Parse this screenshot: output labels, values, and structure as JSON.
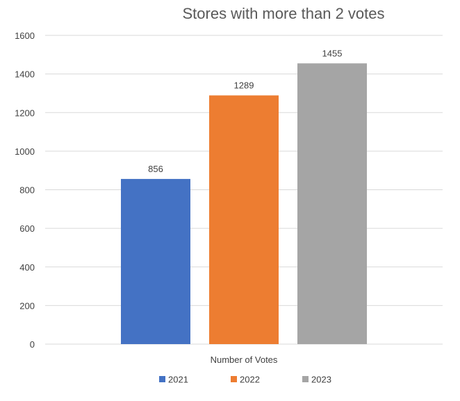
{
  "chart_data": {
    "type": "bar",
    "title": "Stores with more than 2 votes",
    "xlabel": "Number of Votes",
    "ylabel": "",
    "categories": [
      "Number of Votes"
    ],
    "series": [
      {
        "name": "2021",
        "values": [
          856
        ],
        "color": "#4472C4"
      },
      {
        "name": "2022",
        "values": [
          1289
        ],
        "color": "#ED7D31"
      },
      {
        "name": "2023",
        "values": [
          1455
        ],
        "color": "#A5A5A5"
      }
    ],
    "ylim": [
      0,
      1600
    ],
    "yticks": [
      0,
      200,
      400,
      600,
      800,
      1000,
      1200,
      1400,
      1600
    ],
    "grid": true,
    "legend": "bottom",
    "data_labels": true
  }
}
